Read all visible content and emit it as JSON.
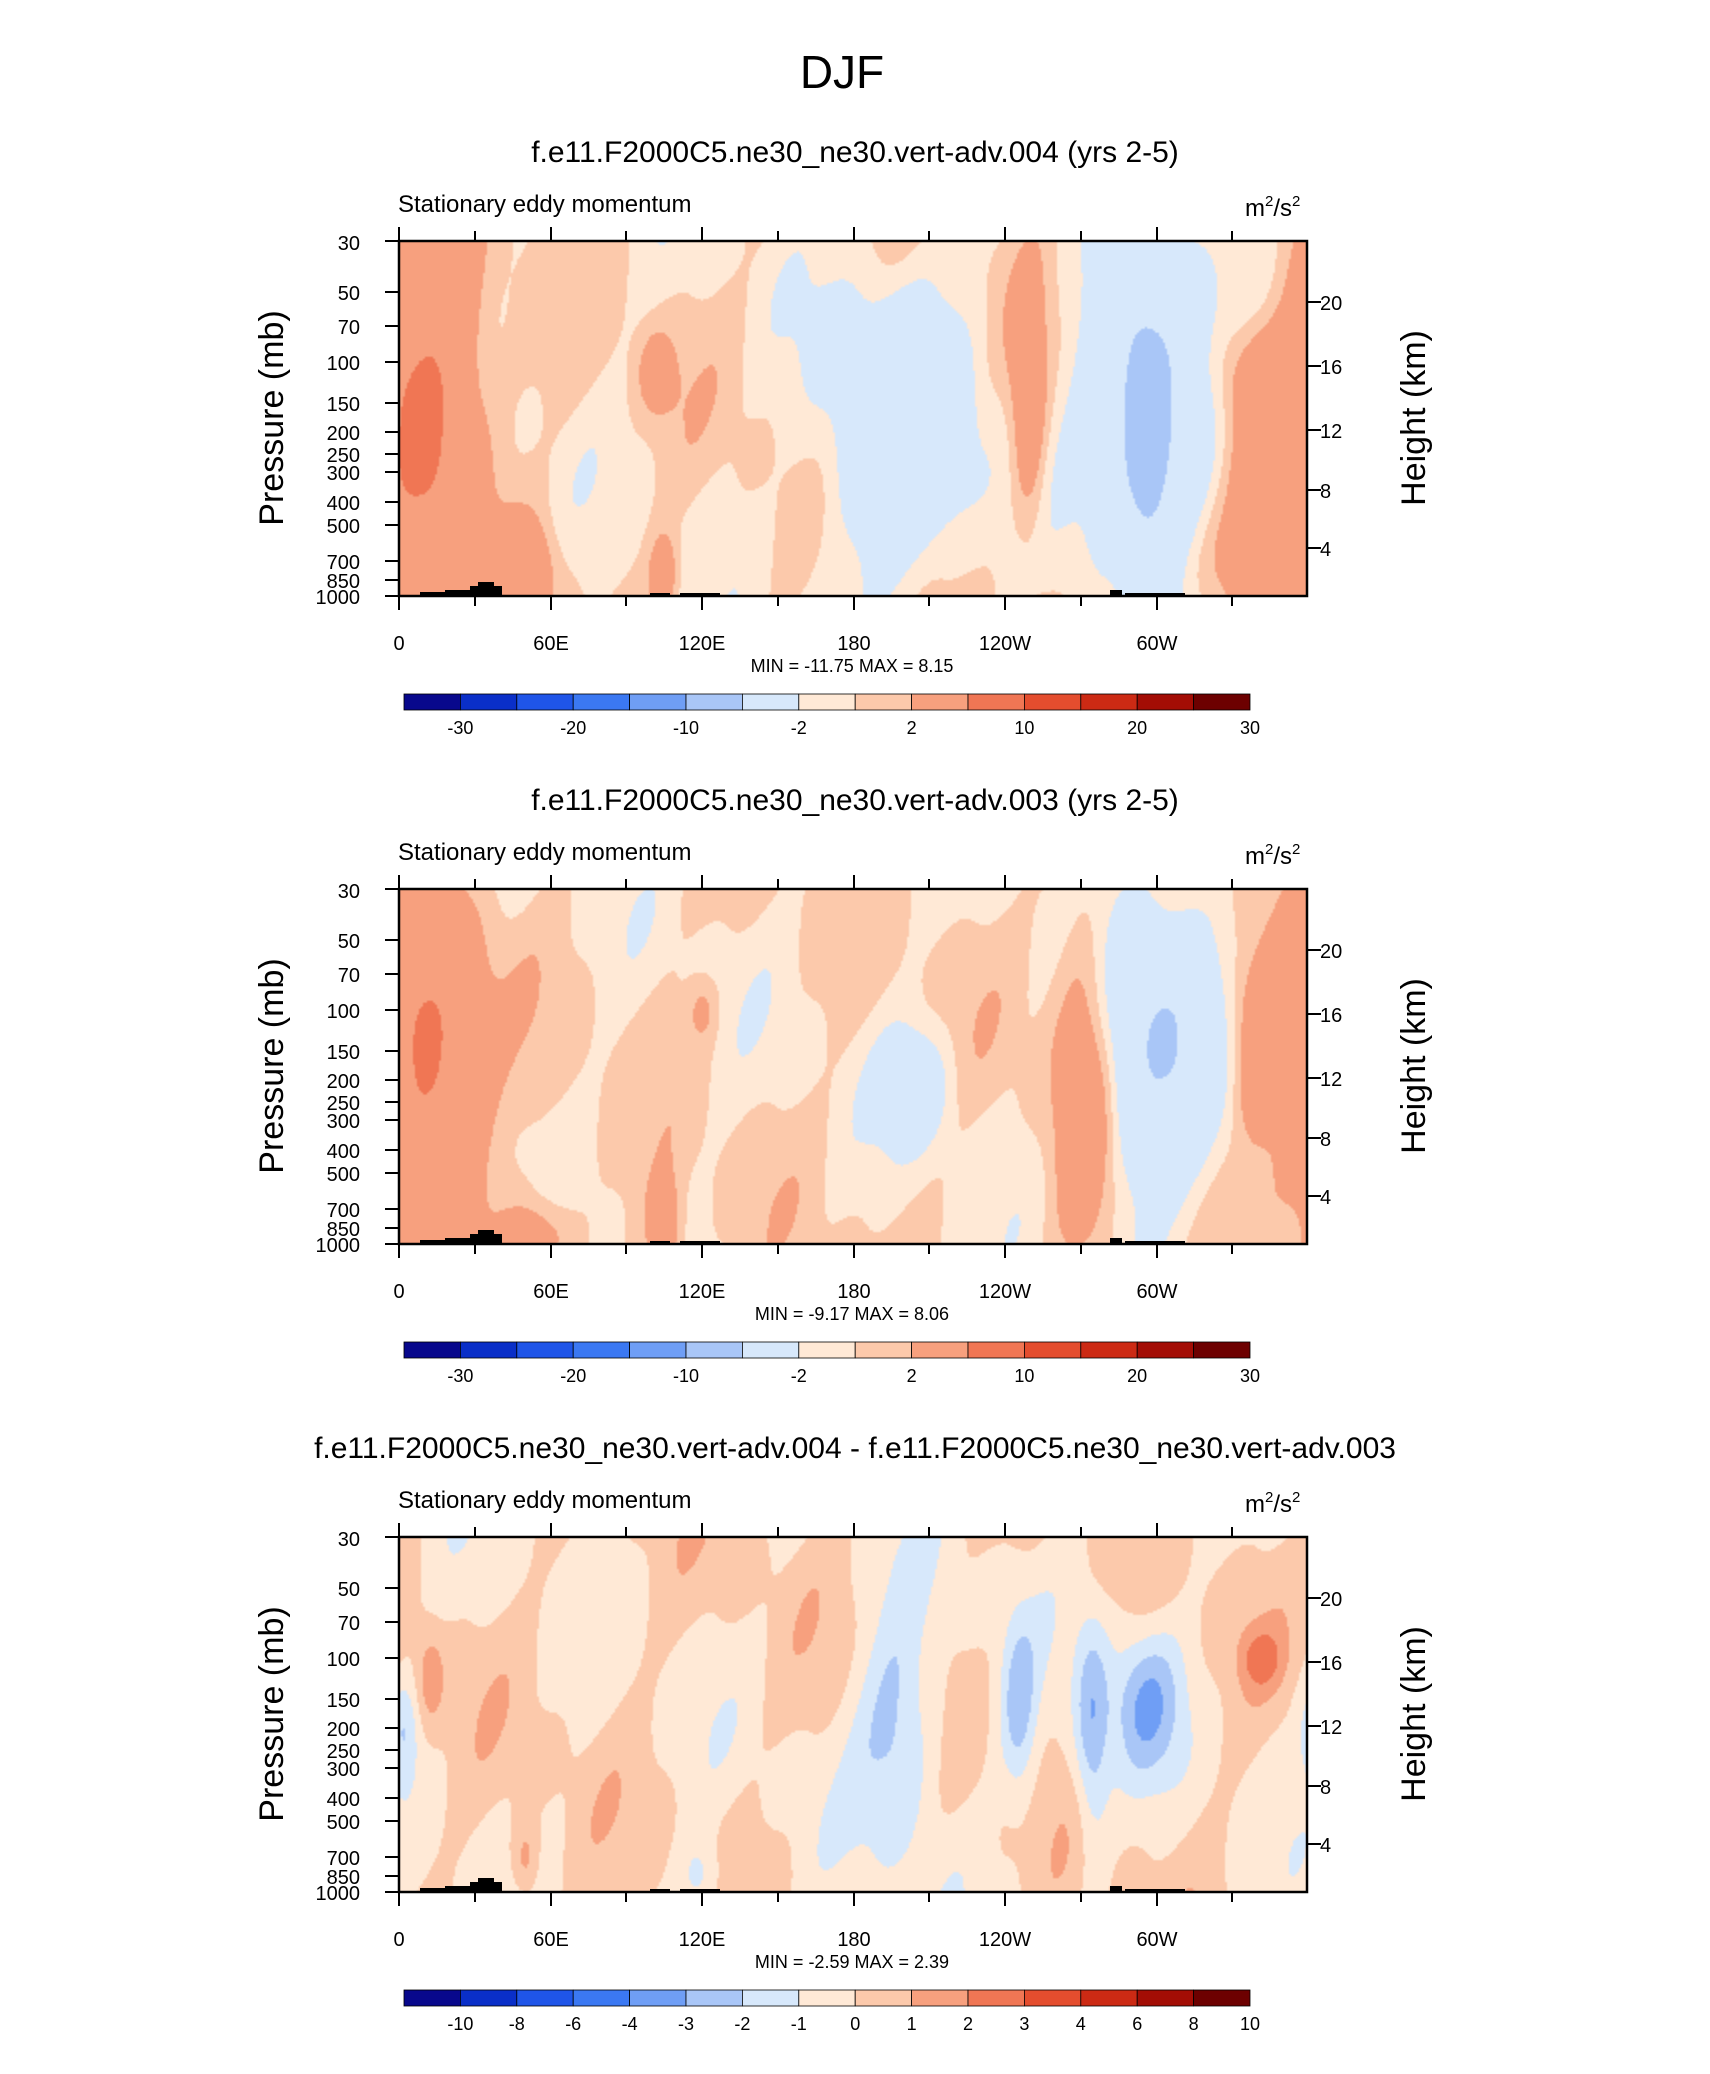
{
  "figure": {
    "title": "DJF"
  },
  "chart_data": [
    {
      "type": "heatmap",
      "title": "f.e11.F2000C5.ne30_ne30.vert-adv.004 (yrs 2-5)",
      "left_label": "Stationary eddy momentum",
      "units_base": "m",
      "units_exp1": "2",
      "units_mid": "/s",
      "units_exp2": "2",
      "ylabel": "Pressure (mb)",
      "ylabel_right": "Height (km)",
      "yticks": [
        "30",
        "50",
        "70",
        "100",
        "150",
        "200",
        "250",
        "300",
        "400",
        "500",
        "700",
        "850",
        "1000"
      ],
      "yticks_right": [
        "20",
        "16",
        "12",
        "8",
        "4"
      ],
      "xticks": [
        "0",
        "60E",
        "120E",
        "180",
        "120W",
        "60W"
      ],
      "min_label": "MIN =",
      "min_value": "-11.75",
      "max_label": "MAX =",
      "max_value": "8.15",
      "colorbar_labels": [
        "-30",
        "-20",
        "-10",
        "-2",
        "2",
        "10",
        "20",
        "30"
      ],
      "colorbar_colors": [
        "#08088c",
        "#0a2fc8",
        "#1f55e8",
        "#3b78f2",
        "#6f9ef5",
        "#a9c6f7",
        "#d7e8fb",
        "#ffe9d6",
        "#fcc9ab",
        "#f7a07e",
        "#f07654",
        "#e44d2e",
        "#cc2a14",
        "#a30d05",
        "#6d0000"
      ],
      "blobs": [
        {
          "lon": 12,
          "p": 175,
          "hw": 14,
          "hp": 0.33,
          "v": 12
        },
        {
          "lon": 102,
          "p": 110,
          "hw": 5,
          "hp": 0.08,
          "v": 4
        },
        {
          "lon": 198,
          "p": 200,
          "hw": 20,
          "hp": 0.28,
          "v": -8
        },
        {
          "lon": 250,
          "p": 170,
          "hw": 5,
          "hp": 0.25,
          "v": 6
        },
        {
          "lon": 297,
          "p": 150,
          "hw": 16,
          "hp": 0.3,
          "v": -13
        },
        {
          "lon": 297,
          "p": 300,
          "hw": 6,
          "hp": 0.25,
          "v": -4
        },
        {
          "lon": 338,
          "p": 110,
          "hw": 13,
          "hp": 0.12,
          "v": 5
        },
        {
          "lon": 342,
          "p": 320,
          "hw": 9,
          "hp": 0.18,
          "v": 4
        },
        {
          "lon": 50,
          "p": 800,
          "hw": 8,
          "hp": 0.1,
          "v": 6
        },
        {
          "lon": 105,
          "p": 820,
          "hw": 4,
          "hp": 0.08,
          "v": 5
        },
        {
          "lon": 335,
          "p": 720,
          "hw": 25,
          "hp": 0.12,
          "v": 3
        }
      ]
    },
    {
      "type": "heatmap",
      "title": "f.e11.F2000C5.ne30_ne30.vert-adv.003 (yrs 2-5)",
      "left_label": "Stationary eddy momentum",
      "units_base": "m",
      "units_exp1": "2",
      "units_mid": "/s",
      "units_exp2": "2",
      "ylabel": "Pressure (mb)",
      "ylabel_right": "Height (km)",
      "yticks": [
        "30",
        "50",
        "70",
        "100",
        "150",
        "200",
        "250",
        "300",
        "400",
        "500",
        "700",
        "850",
        "1000"
      ],
      "yticks_right": [
        "20",
        "16",
        "12",
        "8",
        "4"
      ],
      "xticks": [
        "0",
        "60E",
        "120E",
        "180",
        "120W",
        "60W"
      ],
      "min_label": "MIN =",
      "min_value": "-9.17",
      "max_label": "MAX =",
      "max_value": "8.06",
      "colorbar_labels": [
        "-30",
        "-20",
        "-10",
        "-2",
        "2",
        "10",
        "20",
        "30"
      ],
      "colorbar_colors": [
        "#08088c",
        "#0a2fc8",
        "#1f55e8",
        "#3b78f2",
        "#6f9ef5",
        "#a9c6f7",
        "#d7e8fb",
        "#ffe9d6",
        "#fcc9ab",
        "#f7a07e",
        "#f07654",
        "#e44d2e",
        "#cc2a14",
        "#a30d05",
        "#6d0000"
      ],
      "blobs": [
        {
          "lon": 12,
          "p": 180,
          "hw": 14,
          "hp": 0.33,
          "v": 12
        },
        {
          "lon": 120,
          "p": 100,
          "hw": 4,
          "hp": 0.06,
          "v": 3
        },
        {
          "lon": 205,
          "p": 210,
          "hw": 10,
          "hp": 0.12,
          "v": -5
        },
        {
          "lon": 272,
          "p": 190,
          "hw": 9,
          "hp": 0.35,
          "v": 7
        },
        {
          "lon": 300,
          "p": 150,
          "hw": 18,
          "hp": 0.28,
          "v": -10
        },
        {
          "lon": 342,
          "p": 110,
          "hw": 12,
          "hp": 0.15,
          "v": 5
        },
        {
          "lon": 340,
          "p": 240,
          "hw": 5,
          "hp": 0.1,
          "v": 3
        },
        {
          "lon": 55,
          "p": 900,
          "hw": 10,
          "hp": 0.08,
          "v": 5
        },
        {
          "lon": 105,
          "p": 900,
          "hw": 5,
          "hp": 0.1,
          "v": 6
        }
      ]
    },
    {
      "type": "heatmap",
      "title": "f.e11.F2000C5.ne30_ne30.vert-adv.004 - f.e11.F2000C5.ne30_ne30.vert-adv.003",
      "left_label": "Stationary eddy momentum",
      "units_base": "m",
      "units_exp1": "2",
      "units_mid": "/s",
      "units_exp2": "2",
      "ylabel": "Pressure (mb)",
      "ylabel_right": "Height (km)",
      "yticks": [
        "30",
        "50",
        "70",
        "100",
        "150",
        "200",
        "250",
        "300",
        "400",
        "500",
        "700",
        "850",
        "1000"
      ],
      "yticks_right": [
        "20",
        "16",
        "12",
        "8",
        "4"
      ],
      "xticks": [
        "0",
        "60E",
        "120E",
        "180",
        "120W",
        "60W"
      ],
      "min_label": "MIN =",
      "min_value": "-2.59",
      "max_label": "MAX =",
      "max_value": "2.39",
      "colorbar_labels": [
        "-10",
        "-8",
        "-6",
        "-4",
        "-3",
        "-2",
        "-1",
        "0",
        "1",
        "2",
        "3",
        "4",
        "6",
        "8",
        "10"
      ],
      "colorbar_colors": [
        "#08088c",
        "#0a2fc8",
        "#1f55e8",
        "#3b78f2",
        "#6f9ef5",
        "#a9c6f7",
        "#d7e8fb",
        "#ffe9d6",
        "#fcc9ab",
        "#f7a07e",
        "#f07654",
        "#e44d2e",
        "#cc2a14",
        "#a30d05",
        "#6d0000"
      ],
      "blobs": [
        {
          "lon": 198,
          "p": 200,
          "hw": 12,
          "hp": 0.25,
          "v": -2.5
        },
        {
          "lon": 246,
          "p": 170,
          "hw": 5,
          "hp": 0.18,
          "v": -2.2
        },
        {
          "lon": 275,
          "p": 210,
          "hw": 5,
          "hp": 0.22,
          "v": -2.8
        },
        {
          "lon": 296,
          "p": 150,
          "hw": 10,
          "hp": 0.15,
          "v": -2.6
        },
        {
          "lon": 342,
          "p": 100,
          "hw": 6,
          "hp": 0.06,
          "v": 1.8
        },
        {
          "lon": 2,
          "p": 200,
          "hw": 4,
          "hp": 0.1,
          "v": -1.6
        },
        {
          "lon": 50,
          "p": 750,
          "hw": 4,
          "hp": 0.08,
          "v": 1.8
        },
        {
          "lon": 12,
          "p": 120,
          "hw": 4,
          "hp": 0.1,
          "v": 1.5
        },
        {
          "lon": 120,
          "p": 900,
          "hw": 6,
          "hp": 0.08,
          "v": -1.5
        }
      ]
    }
  ]
}
